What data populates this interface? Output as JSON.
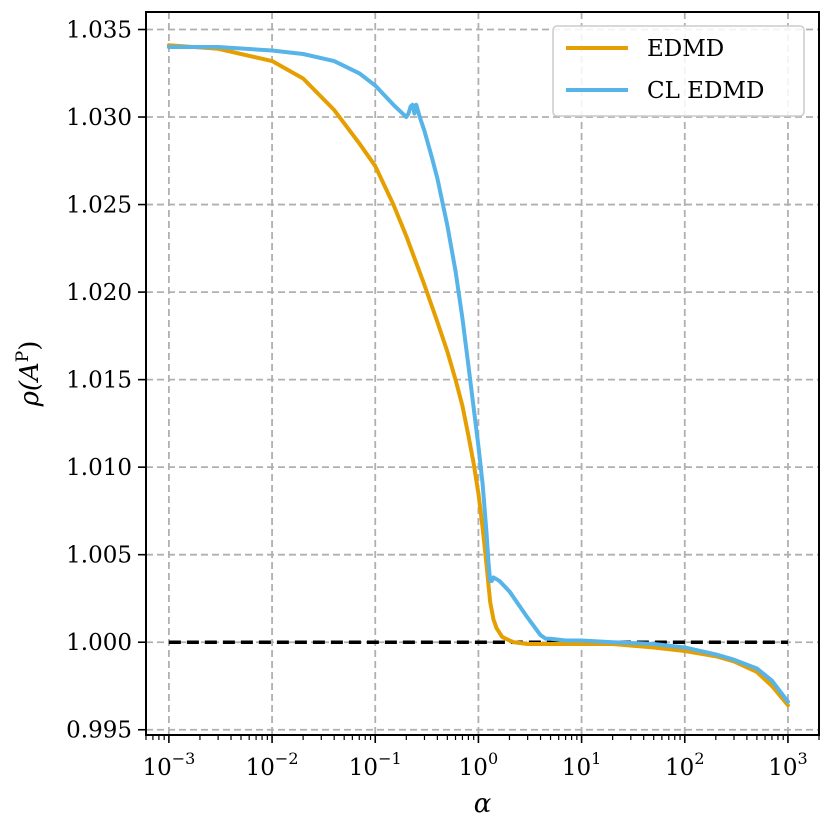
{
  "chart_data": {
    "type": "line",
    "xlabel": "α",
    "ylabel": "ρ(A",
    "ylabel_superscript": "P",
    "xscale": "log",
    "xlim": [
      0.0006,
      2000
    ],
    "ylim": [
      0.9947,
      1.036
    ],
    "x_ticks": [
      {
        "value": 0.001,
        "base": "10",
        "exp": "−3"
      },
      {
        "value": 0.01,
        "base": "10",
        "exp": "−2"
      },
      {
        "value": 0.1,
        "base": "10",
        "exp": "−1"
      },
      {
        "value": 1,
        "base": "10",
        "exp": "0"
      },
      {
        "value": 10,
        "base": "10",
        "exp": "1"
      },
      {
        "value": 100,
        "base": "10",
        "exp": "2"
      },
      {
        "value": 1000,
        "base": "10",
        "exp": "3"
      }
    ],
    "y_ticks": [
      0.995,
      1.0,
      1.005,
      1.01,
      1.015,
      1.02,
      1.025,
      1.03,
      1.035
    ],
    "y_tick_labels": [
      "0.995",
      "1.000",
      "1.005",
      "1.010",
      "1.015",
      "1.020",
      "1.025",
      "1.030",
      "1.035"
    ],
    "grid": true,
    "legend_position": "top-right",
    "reference_line": {
      "y": 1.0,
      "x_range": [
        0.001,
        1000
      ],
      "color": "#000000",
      "style": "dashed"
    },
    "series": [
      {
        "name": "EDMD",
        "color": "#E69F00",
        "x": [
          0.001,
          0.003,
          0.01,
          0.02,
          0.04,
          0.07,
          0.1,
          0.15,
          0.2,
          0.3,
          0.4,
          0.5,
          0.6,
          0.7,
          0.8,
          0.9,
          1.0,
          1.1,
          1.2,
          1.3,
          1.4,
          1.5,
          1.7,
          2.0,
          2.2,
          3.0,
          5.0,
          10,
          20,
          50,
          100,
          200,
          300,
          500,
          700,
          1000
        ],
        "y": [
          1.0341,
          1.0339,
          1.0332,
          1.0322,
          1.0304,
          1.0285,
          1.0272,
          1.025,
          1.0232,
          1.0204,
          1.0183,
          1.0166,
          1.015,
          1.0135,
          1.0118,
          1.0102,
          1.0085,
          1.0065,
          1.0044,
          1.0023,
          1.0013,
          1.0008,
          1.0003,
          1.0001,
          1.0,
          0.9999,
          0.9999,
          0.9999,
          0.9999,
          0.9997,
          0.9995,
          0.9992,
          0.9989,
          0.9983,
          0.9975,
          0.9964
        ]
      },
      {
        "name": "CL EDMD",
        "color": "#56B4E9",
        "x": [
          0.001,
          0.003,
          0.01,
          0.02,
          0.04,
          0.07,
          0.1,
          0.15,
          0.2,
          0.21,
          0.22,
          0.23,
          0.24,
          0.25,
          0.27,
          0.3,
          0.35,
          0.4,
          0.5,
          0.6,
          0.7,
          0.8,
          1.0,
          1.1,
          1.2,
          1.25,
          1.3,
          1.35,
          1.4,
          1.6,
          2.0,
          3.0,
          4.0,
          4.5,
          5.0,
          7.0,
          10,
          20,
          50,
          100,
          200,
          300,
          500,
          700,
          1000
        ],
        "y": [
          1.034,
          1.034,
          1.0338,
          1.0336,
          1.0332,
          1.0325,
          1.0318,
          1.0307,
          1.03,
          1.0302,
          1.0306,
          1.0307,
          1.0302,
          1.0307,
          1.03,
          1.0292,
          1.0278,
          1.0265,
          1.0238,
          1.0212,
          1.0185,
          1.0158,
          1.0112,
          1.009,
          1.0062,
          1.0046,
          1.0035,
          1.0035,
          1.0037,
          1.0035,
          1.0029,
          1.0014,
          1.0004,
          1.0002,
          1.0002,
          1.0001,
          1.0001,
          1.0,
          0.9999,
          0.9997,
          0.9993,
          0.999,
          0.9985,
          0.9978,
          0.9966
        ]
      }
    ]
  }
}
